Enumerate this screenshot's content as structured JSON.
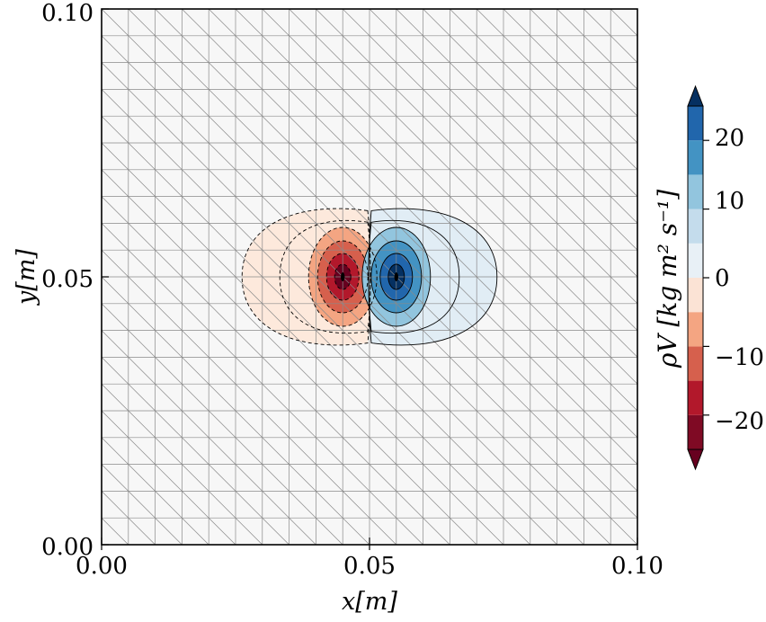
{
  "chart_data": {
    "type": "contour",
    "xlabel": "x[m]",
    "ylabel": "y[m]",
    "xlim": [
      0.0,
      0.1
    ],
    "ylim": [
      0.0,
      0.1
    ],
    "xticks": [
      "0.00",
      "0.05",
      "0.10"
    ],
    "yticks": [
      "0.00",
      "0.05",
      "0.10"
    ],
    "colorbar": {
      "label": "ρV  [kg m² s⁻¹]",
      "ticks": [
        "20",
        "10",
        "0",
        "−10",
        "−20"
      ],
      "tick_values": [
        20,
        10,
        0,
        -10,
        -20
      ],
      "range": [
        -25,
        25
      ],
      "level_step": 5,
      "extend": "both",
      "colormap": "RdBu"
    },
    "field": {
      "description": "antisymmetric vortex dipole",
      "negative_center": [
        0.045,
        0.05
      ],
      "positive_center": [
        0.055,
        0.05
      ],
      "peak_magnitude": 24
    },
    "mesh": {
      "grid_x": 20,
      "grid_y": 20,
      "triangulation": "diagonal"
    },
    "colors": {
      "background_level": "#f7f7f7",
      "mesh_line": "#888888",
      "dark_red": "#67001f",
      "dark_blue": "#053061"
    }
  }
}
